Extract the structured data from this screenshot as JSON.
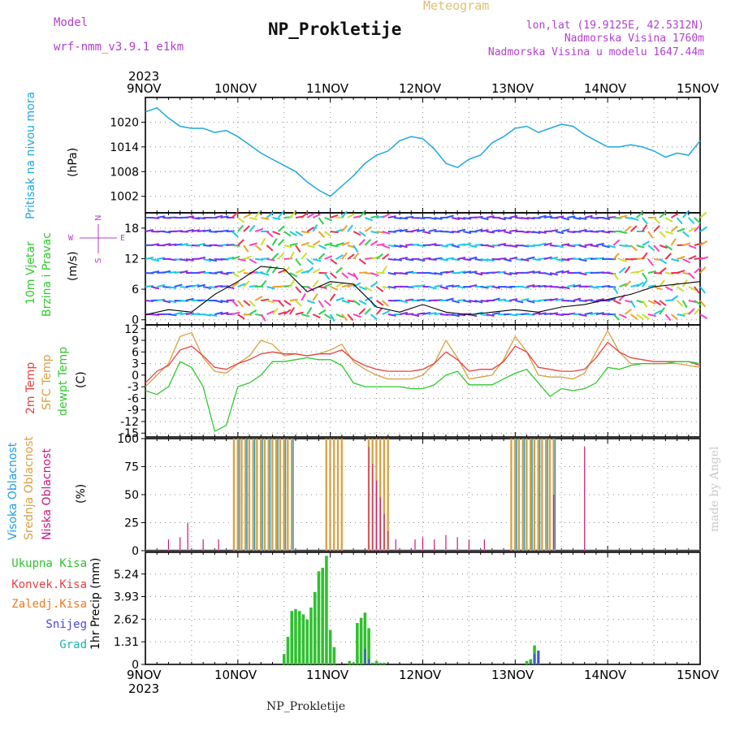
{
  "header": {
    "model_label": "Model",
    "model_value": "wrf-nmm_v3.9.1  e1km",
    "title": "NP_Prokletije",
    "meteogram_label": "Meteogram",
    "coords": "lon,lat (19.9125E, 42.5312N)",
    "altitude": "Nadmorska Visina 1760m",
    "model_altitude": "Nadmorska Visina u modelu 1647.44m"
  },
  "colors": {
    "pressure": "#1ea8e0",
    "temp2m": "#e84040",
    "sfc_temp": "#d8a040",
    "dewpoint": "#30c830",
    "high_cloud": "#20a0e0",
    "mid_cloud": "#d8a040",
    "low_cloud": "#c81880",
    "total_precip": "#30c030",
    "convective": "#e84040",
    "frozen": "#f07820",
    "snow": "#4848e0",
    "hail": "#20b0b0",
    "wind_speed": "#000000"
  },
  "time_axis": {
    "year": "2023",
    "ticks": [
      "9NOV",
      "10NOV",
      "11NOV",
      "12NOV",
      "13NOV",
      "14NOV",
      "15NOV"
    ]
  },
  "panels": {
    "pressure": {
      "label": "Pritisak na nivou mora",
      "unit": "(hPa)"
    },
    "wind": {
      "label1": "10m Vjetar",
      "label2": "Brzina i Pravac",
      "unit": "(m/s)",
      "compass": "N",
      "west": "W",
      "east": "E",
      "south": "S"
    },
    "temp": {
      "label_2m": "2m Temp",
      "label_sfc": "SFC Temp",
      "label_dew": "dewpt Temp",
      "unit": "(C)"
    },
    "cloud": {
      "label_high": "Visoka Oblacnost",
      "label_mid": "Srednja Oblacnost",
      "label_low": "Niska Oblacnost",
      "unit": "(%)"
    },
    "precip": {
      "unit": "1hr Precip (mm)",
      "legend": [
        "Ukupna Kisa",
        "Konvek.Kisa",
        "Zaledj.Kisa",
        "Snijeg",
        "Grad"
      ]
    }
  },
  "footer": {
    "station": "NP_Prokletije",
    "made_by": "made by Angel"
  },
  "chart_data": [
    {
      "type": "line",
      "title": "Pritisak na nivou mora",
      "ylabel": "(hPa)",
      "ylim": [
        998,
        1026
      ],
      "yticks": [
        1002,
        1008,
        1014,
        1020
      ],
      "x": [
        0,
        3,
        6,
        9,
        12,
        15,
        18,
        21,
        24,
        27,
        30,
        33,
        36,
        39,
        42,
        45,
        48,
        51,
        54,
        57,
        60,
        63,
        66,
        69,
        72,
        75,
        78,
        81,
        84,
        87,
        90,
        93,
        96,
        99,
        102,
        105,
        108,
        111,
        114,
        117,
        120,
        123,
        126,
        129,
        132,
        135,
        138,
        141,
        144
      ],
      "series": [
        {
          "values": [
            1022.5,
            1023.5,
            1021.0,
            1019.0,
            1018.5,
            1018.5,
            1017.5,
            1018.0,
            1016.5,
            1014.5,
            1012.5,
            1011.0,
            1009.5,
            1008.0,
            1005.5,
            1003.5,
            1002.0,
            1004.5,
            1007.0,
            1010.0,
            1012.0,
            1013.0,
            1015.5,
            1016.5,
            1016.0,
            1013.5,
            1010.0,
            1009.0,
            1011.0,
            1012.0,
            1015.0,
            1016.5,
            1018.5,
            1019.0,
            1017.5,
            1018.5,
            1019.5,
            1019.0,
            1017.0,
            1015.5,
            1014.0,
            1014.0,
            1014.5,
            1014.0,
            1013.0,
            1011.5,
            1012.5,
            1012.0,
            1015.5
          ]
        }
      ]
    },
    {
      "type": "line",
      "title": "10m Vjetar Brzina i Pravac",
      "ylabel": "(m/s)",
      "ylim": [
        -1,
        21
      ],
      "yticks": [
        0,
        6,
        12,
        18
      ],
      "x": [
        0,
        6,
        12,
        18,
        24,
        30,
        36,
        42,
        48,
        54,
        60,
        66,
        72,
        78,
        84,
        90,
        96,
        102,
        108,
        114,
        120,
        126,
        132,
        138,
        144
      ],
      "series": [
        {
          "values": [
            1.0,
            2.0,
            1.5,
            5.0,
            7.5,
            10.5,
            10.0,
            5.5,
            7.5,
            7.0,
            2.5,
            1.5,
            3.0,
            1.5,
            1.0,
            1.5,
            2.0,
            1.5,
            2.5,
            3.0,
            4.0,
            5.0,
            6.5,
            7.0,
            7.5
          ]
        }
      ]
    },
    {
      "type": "line",
      "title": "2m Temp / SFC Temp / dewpt Temp",
      "ylabel": "(C)",
      "ylim": [
        -16,
        13
      ],
      "yticks": [
        -15,
        -12,
        -9,
        -6,
        -3,
        0,
        3,
        6,
        9,
        12
      ],
      "x": [
        0,
        3,
        6,
        9,
        12,
        15,
        18,
        21,
        24,
        27,
        30,
        33,
        36,
        39,
        42,
        45,
        48,
        51,
        54,
        57,
        60,
        63,
        66,
        69,
        72,
        75,
        78,
        81,
        84,
        87,
        90,
        93,
        96,
        99,
        102,
        105,
        108,
        111,
        114,
        117,
        120,
        123,
        126,
        129,
        132,
        135,
        138,
        141,
        144
      ],
      "series": [
        {
          "name": "2m Temp",
          "values": [
            -2.0,
            1.0,
            2.5,
            6.5,
            7.5,
            5.0,
            2.0,
            1.5,
            3.0,
            4.0,
            5.5,
            6.0,
            5.5,
            5.5,
            5.0,
            5.5,
            5.5,
            6.5,
            4.0,
            2.5,
            1.5,
            1.0,
            1.0,
            1.0,
            1.5,
            3.0,
            6.0,
            4.0,
            1.0,
            1.5,
            1.5,
            3.5,
            7.5,
            6.0,
            2.0,
            1.5,
            1.0,
            1.0,
            1.5,
            4.5,
            8.5,
            6.0,
            4.5,
            4.0,
            3.5,
            3.5,
            3.5,
            3.5,
            2.5
          ]
        },
        {
          "name": "SFC Temp",
          "values": [
            -3.0,
            0.0,
            3.0,
            10.0,
            11.0,
            4.5,
            1.0,
            0.5,
            3.0,
            5.0,
            9.0,
            8.0,
            5.0,
            5.5,
            5.0,
            5.5,
            6.5,
            8.0,
            3.5,
            1.5,
            0.0,
            -1.0,
            -1.0,
            -1.0,
            0.0,
            3.0,
            9.0,
            4.5,
            -1.0,
            -0.5,
            0.0,
            4.0,
            10.0,
            6.0,
            0.0,
            -0.5,
            -0.5,
            -1.0,
            0.5,
            6.0,
            11.5,
            6.0,
            3.0,
            3.0,
            3.0,
            3.0,
            3.0,
            2.5,
            2.0
          ]
        },
        {
          "name": "dewpt Temp",
          "values": [
            -4.0,
            -5.0,
            -3.0,
            3.5,
            2.0,
            -3.0,
            -14.5,
            -13.0,
            -3.0,
            -2.0,
            0.0,
            3.5,
            3.5,
            4.0,
            4.5,
            4.0,
            4.0,
            2.5,
            -2.0,
            -3.0,
            -3.0,
            -3.0,
            -3.0,
            -3.5,
            -3.5,
            -2.5,
            0.0,
            1.0,
            -2.5,
            -2.5,
            -2.5,
            -1.0,
            0.5,
            1.5,
            -2.0,
            -5.5,
            -3.5,
            -4.0,
            -3.5,
            -2.0,
            2.0,
            1.5,
            2.5,
            3.0,
            3.0,
            3.0,
            3.5,
            3.5,
            3.0
          ]
        }
      ]
    },
    {
      "type": "bar",
      "title": "Visoka / Srednja / Niska Oblacnost",
      "ylabel": "(%)",
      "ylim": [
        0,
        100
      ],
      "yticks": [
        0,
        25,
        50,
        75,
        100
      ],
      "segments": [
        {
          "from": 22.5,
          "to": 38.5,
          "mid": 100,
          "high": 100
        },
        {
          "from": 46.5,
          "to": 51.5,
          "mid": 100
        },
        {
          "from": 57.5,
          "to": 63.5,
          "mid": 100,
          "low_pattern": "decreasing"
        },
        {
          "from": 95,
          "to": 106,
          "mid": 100,
          "high": 100
        }
      ],
      "low_spikes": [
        {
          "x": 6,
          "v": 10
        },
        {
          "x": 9,
          "v": 12
        },
        {
          "x": 11,
          "v": 25
        },
        {
          "x": 15,
          "v": 10
        },
        {
          "x": 19,
          "v": 10
        },
        {
          "x": 65,
          "v": 10
        },
        {
          "x": 70,
          "v": 10
        },
        {
          "x": 72,
          "v": 12
        },
        {
          "x": 75,
          "v": 10
        },
        {
          "x": 78,
          "v": 14
        },
        {
          "x": 81,
          "v": 12
        },
        {
          "x": 84,
          "v": 10
        },
        {
          "x": 88,
          "v": 10
        },
        {
          "x": 106,
          "v": 50
        },
        {
          "x": 114,
          "v": 93
        }
      ],
      "note": "bars are hourly; total values read from bar tops"
    },
    {
      "type": "bar",
      "title": "1hr Precip",
      "ylabel": "1hr Precip (mm)",
      "ylim": [
        0,
        6.5
      ],
      "yticks": [
        0,
        1.31,
        2.62,
        3.93,
        5.24
      ],
      "x": [
        36,
        37,
        38,
        39,
        40,
        41,
        42,
        43,
        44,
        45,
        46,
        47,
        48,
        49,
        53,
        54,
        55,
        56,
        57,
        58,
        59,
        60,
        61,
        62,
        99,
        100,
        101,
        102
      ],
      "series": [
        {
          "name": "Ukupna Kisa",
          "values": [
            0.6,
            1.6,
            3.1,
            3.2,
            3.1,
            2.9,
            2.6,
            3.3,
            4.2,
            5.4,
            5.6,
            6.3,
            2.0,
            1.0,
            0.2,
            0.1,
            2.4,
            2.7,
            3.0,
            2.1,
            0.1,
            0.2,
            0.1,
            0.1,
            0.2,
            0.3,
            1.1,
            0.8
          ]
        },
        {
          "name": "Snijeg",
          "values": [
            0,
            0,
            0,
            0,
            0,
            0,
            0,
            0,
            0,
            0,
            0,
            0,
            0,
            0,
            0,
            0,
            0,
            0,
            0.9,
            0.3,
            0,
            0,
            0,
            0,
            0,
            0.1,
            0.6,
            0.8
          ]
        }
      ]
    }
  ]
}
